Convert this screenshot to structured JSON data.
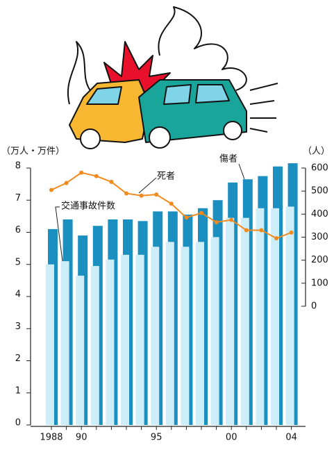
{
  "chart_data": {
    "type": "bar-line",
    "ylabel": "（万人・万件）",
    "y2label": "（人）",
    "categories": [
      "1988",
      null,
      "90",
      null,
      null,
      null,
      null,
      "95",
      null,
      null,
      null,
      null,
      "00",
      null,
      null,
      null,
      "04"
    ],
    "series": [
      {
        "name": "傷者",
        "color": "#1a8fc0",
        "type": "bar",
        "values": [
          6.1,
          6.4,
          5.9,
          6.2,
          6.4,
          6.4,
          6.35,
          6.65,
          6.65,
          6.55,
          6.75,
          7.0,
          7.55,
          7.65,
          7.75,
          8.05,
          8.15
        ]
      },
      {
        "name": "交通事故件数",
        "color": "#cdeef8",
        "type": "bar",
        "values": [
          5.0,
          5.1,
          4.65,
          4.95,
          5.15,
          5.3,
          5.3,
          5.55,
          5.7,
          5.55,
          5.7,
          5.85,
          6.45,
          6.45,
          6.75,
          6.75,
          6.8
        ]
      },
      {
        "name": "死者",
        "color": "#f08a1c",
        "type": "line",
        "axis": "y2",
        "values": [
          505,
          535,
          580,
          565,
          540,
          490,
          480,
          485,
          445,
          385,
          405,
          365,
          375,
          330,
          330,
          295,
          320
        ]
      }
    ],
    "ylim": [
      0,
      8
    ],
    "yticks": [
      0,
      1,
      2,
      3,
      4,
      5,
      6,
      7,
      8
    ],
    "y2lim": [
      0,
      600
    ],
    "y2ticks": [
      0,
      100,
      200,
      300,
      400,
      500,
      600
    ]
  }
}
